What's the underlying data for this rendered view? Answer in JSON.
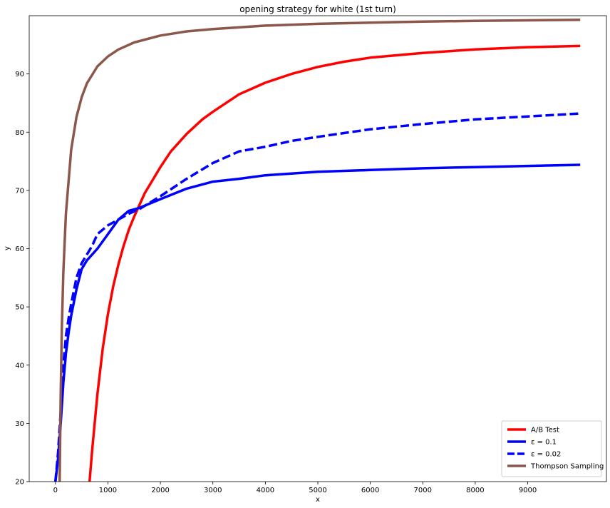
{
  "chart_data": {
    "type": "line",
    "title": "opening strategy for white (1st turn)",
    "xlabel": "x",
    "ylabel": "y",
    "xlim": [
      -500,
      10500
    ],
    "ylim": [
      20,
      100
    ],
    "xticks": [
      0,
      1000,
      2000,
      3000,
      4000,
      5000,
      6000,
      7000,
      8000,
      9000
    ],
    "yticks": [
      20,
      30,
      40,
      50,
      60,
      70,
      80,
      90
    ],
    "grid": false,
    "legend_position": "lower-right",
    "series": [
      {
        "name": "A/B Test",
        "color": "#ff0000",
        "dash": "solid",
        "x": [
          650,
          700,
          800,
          900,
          1000,
          1100,
          1200,
          1300,
          1400,
          1500,
          1700,
          2000,
          2200,
          2500,
          2800,
          3000,
          3500,
          4000,
          4500,
          5000,
          5500,
          6000,
          7000,
          8000,
          9000,
          10000
        ],
        "y": [
          20,
          25.5,
          35,
          42.8,
          48.8,
          53.5,
          57.3,
          60.5,
          63.3,
          65.5,
          69.5,
          74,
          76.7,
          79.7,
          82.2,
          83.5,
          86.5,
          88.5,
          90,
          91.2,
          92.1,
          92.8,
          93.6,
          94.2,
          94.6,
          94.8
        ]
      },
      {
        "name": "ε = 0.1",
        "color": "#0000ff",
        "dash": "solid",
        "x": [
          0,
          50,
          100,
          150,
          200,
          250,
          300,
          400,
          500,
          600,
          700,
          800,
          1000,
          1200,
          1400,
          1600,
          2000,
          2500,
          3000,
          3500,
          4000,
          5000,
          6000,
          7000,
          8000,
          9000,
          10000
        ],
        "y": [
          20,
          24,
          30,
          37,
          42,
          45.5,
          48.5,
          53,
          56.5,
          58,
          59,
          60,
          62.5,
          65,
          66.5,
          67,
          68.5,
          70.3,
          71.5,
          72,
          72.6,
          73.2,
          73.5,
          73.8,
          74,
          74.2,
          74.4
        ]
      },
      {
        "name": "ε = 0.02",
        "color": "#0000ff",
        "dash": "dashed",
        "x": [
          0,
          50,
          100,
          150,
          200,
          250,
          300,
          400,
          500,
          600,
          700,
          800,
          1000,
          1200,
          1400,
          1600,
          2000,
          2500,
          3000,
          3500,
          4000,
          4500,
          5000,
          6000,
          7000,
          8000,
          9000,
          10000
        ],
        "y": [
          20,
          25,
          32,
          40,
          45,
          48,
          50.5,
          55,
          57.5,
          59,
          60.5,
          62.5,
          64,
          65,
          66,
          66.8,
          69,
          72,
          74.7,
          76.7,
          77.5,
          78.5,
          79.2,
          80.5,
          81.4,
          82.2,
          82.7,
          83.2
        ]
      },
      {
        "name": "Thompson Sampling",
        "color": "#8c564b",
        "dash": "solid",
        "x": [
          80,
          100,
          120,
          150,
          200,
          300,
          400,
          500,
          600,
          800,
          1000,
          1200,
          1500,
          2000,
          2500,
          3000,
          4000,
          5000,
          6000,
          7000,
          8000,
          9000,
          10000
        ],
        "y": [
          20,
          35,
          46,
          56,
          66,
          77,
          82.6,
          86,
          88.4,
          91.3,
          93,
          94.2,
          95.4,
          96.6,
          97.3,
          97.7,
          98.3,
          98.6,
          98.8,
          99,
          99.1,
          99.2,
          99.3
        ]
      }
    ]
  }
}
